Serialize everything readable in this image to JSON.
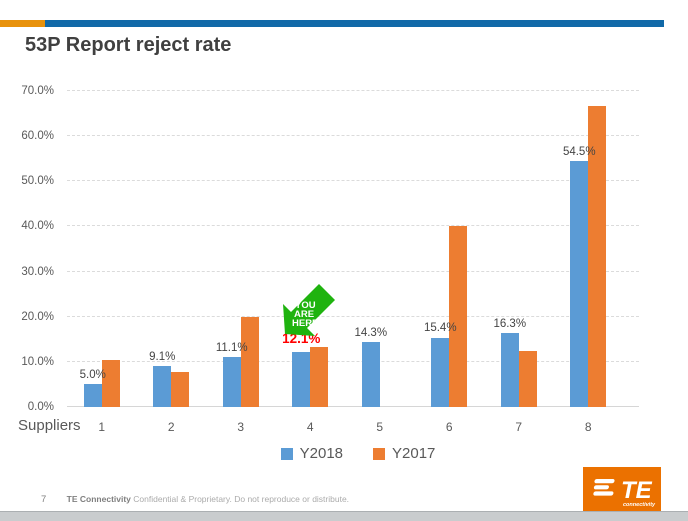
{
  "header": {
    "title": "53P Report reject rate"
  },
  "theme": {
    "top_bar_orange": "#E8920C",
    "top_bar_blue": "#1169A8",
    "title_color": "#404040"
  },
  "chart_data": {
    "type": "bar",
    "title": "53P Report reject rate",
    "x_axis_label": "Suppliers",
    "categories": [
      "1",
      "2",
      "3",
      "4",
      "5",
      "6",
      "7",
      "8"
    ],
    "series": [
      {
        "name": "Y2018",
        "color": "#5B9BD5",
        "values": [
          5.0,
          9.1,
          11.1,
          12.1,
          14.3,
          15.4,
          16.3,
          54.5
        ],
        "labels": [
          "5.0%",
          "9.1%",
          "11.1%",
          "12.1%",
          "14.3%",
          "15.4%",
          "16.3%",
          "54.5%"
        ]
      },
      {
        "name": "Y2017",
        "color": "#ED7D31",
        "values": [
          10.4,
          7.8,
          20.0,
          13.3,
          0,
          40.0,
          12.4,
          66.7
        ]
      }
    ],
    "ylim": [
      0,
      70
    ],
    "ytick_step": 10,
    "ytick_labels": [
      "0.0%",
      "10.0%",
      "20.0%",
      "30.0%",
      "40.0%",
      "50.0%",
      "60.0%",
      "70.0%"
    ],
    "grid": "horizontal-dashed",
    "legend_position": "bottom",
    "annotation": {
      "lines": [
        "YOU",
        "ARE",
        "HERE."
      ],
      "target_category": "4",
      "arrow_color": "#1FB30F",
      "highlight_label": "12.1%",
      "highlight_color": "#FF0000"
    }
  },
  "legend": {
    "items": [
      {
        "label": "Y2018",
        "color": "#5B9BD5"
      },
      {
        "label": "Y2017",
        "color": "#ED7D31"
      }
    ]
  },
  "footer": {
    "page_number": "7",
    "company": "TE Connectivity",
    "confidential": "Confidential & Proprietary. Do not reproduce or distribute."
  },
  "logo": {
    "text": "TE",
    "subtext": "connectivity"
  }
}
